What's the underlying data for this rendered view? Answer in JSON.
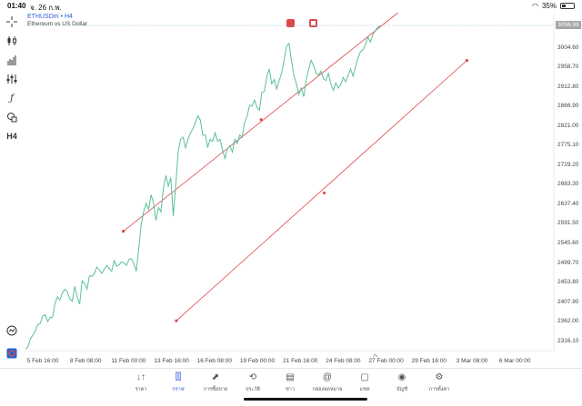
{
  "status_bar": {
    "time": "01:40",
    "date": "จ. 26 ก.พ.",
    "battery": "35%",
    "battery_level": 0.35
  },
  "chart_header": {
    "symbol": "ETHUSDm",
    "separator": "•",
    "timeframe": "H4",
    "description": "Ethereum vs US Dollar"
  },
  "toolbar": {
    "timeframe_label": "H4"
  },
  "colors": {
    "line": "#5cbf9a",
    "trendline": "#e0474c",
    "accent": "#2a5bd7"
  },
  "chart_data": {
    "type": "line",
    "current_price": "3056.98",
    "y_ticks": [
      "3004.60",
      "2958.70",
      "2912.80",
      "2866.90",
      "2821.00",
      "2775.10",
      "2729.20",
      "2683.30",
      "2637.40",
      "2591.50",
      "2545.60",
      "2499.70",
      "2453.80",
      "2407.90",
      "2362.00",
      "2316.10"
    ],
    "x_ticks": [
      "5 Feb 16:00",
      "8 Feb 08:00",
      "11 Feb 00:00",
      "13 Feb 16:00",
      "16 Feb 08:00",
      "19 Feb 00:00",
      "21 Feb 16:00",
      "24 Feb 08:00",
      "27 Feb 00:00",
      "29 Feb 16:00",
      "3 Mar 08:00",
      "6 Mar 00:00"
    ],
    "series": [
      {
        "values": [
          2298,
          2302,
          2322,
          2330,
          2340,
          2355,
          2358,
          2375,
          2378,
          2362,
          2372,
          2372,
          2405,
          2420,
          2413,
          2430,
          2438,
          2432,
          2415,
          2410,
          2445,
          2420,
          2403,
          2458,
          2452,
          2438,
          2470,
          2468,
          2475,
          2490,
          2483,
          2475,
          2485,
          2494,
          2487,
          2480,
          2505,
          2492,
          2495,
          2502,
          2500,
          2494,
          2508,
          2510,
          2498,
          2480,
          2535,
          2590,
          2620,
          2640,
          2625,
          2660,
          2640,
          2600,
          2630,
          2620,
          2675,
          2705,
          2680,
          2700,
          2610,
          2680,
          2760,
          2790,
          2795,
          2770,
          2790,
          2805,
          2815,
          2830,
          2845,
          2835,
          2800,
          2800,
          2772,
          2790,
          2785,
          2805,
          2785,
          2790,
          2765,
          2745,
          2768,
          2775,
          2760,
          2790,
          2780,
          2800,
          2795,
          2830,
          2845,
          2870,
          2868,
          2882,
          2865,
          2858,
          2900,
          2902,
          2938,
          2955,
          2920,
          2930,
          2908,
          2928,
          2945,
          2975,
          3008,
          3015,
          2975,
          2940,
          2920,
          2895,
          2910,
          2890,
          2930,
          2955,
          2975,
          2962,
          2945,
          2940,
          2950,
          2932,
          2928,
          2945,
          2920,
          2905,
          2922,
          2910,
          2918,
          2935,
          2925,
          2940,
          2955,
          2938,
          2960,
          2980,
          2995,
          3000,
          3012,
          3030,
          3018,
          3035,
          3045,
          3052,
          3057
        ]
      }
    ],
    "x_range": [
      0,
      1
    ],
    "y_range": [
      2294,
      3087
    ],
    "trendlines": [
      {
        "x1": 0.188,
        "y1": 2574,
        "xm": 0.448,
        "ym": 2836,
        "x2": 0.706,
        "y2": 3107
      },
      {
        "x1": 0.288,
        "y1": 2364,
        "xm": 0.567,
        "ym": 2664,
        "x2": 0.836,
        "y2": 2975
      }
    ],
    "grid": false
  },
  "nav": {
    "items": [
      {
        "key": "quotes",
        "label": "ราคา",
        "icon": "↓↑"
      },
      {
        "key": "chart",
        "label": "กราฟ",
        "icon": "⫿⫿",
        "active": true
      },
      {
        "key": "trade",
        "label": "การซื้อขาย",
        "icon": "⬈"
      },
      {
        "key": "history",
        "label": "ประวัติ",
        "icon": "⟲"
      },
      {
        "key": "news",
        "label": "ข่าว",
        "icon": "▤"
      },
      {
        "key": "mailbox",
        "label": "กล่องจดหมาย",
        "icon": "@"
      },
      {
        "key": "chat",
        "label": "แชท",
        "icon": "▢"
      },
      {
        "key": "account",
        "label": "บัญชี",
        "icon": "◉"
      },
      {
        "key": "settings",
        "label": "การตั้งค่า",
        "icon": "⚙"
      }
    ]
  }
}
